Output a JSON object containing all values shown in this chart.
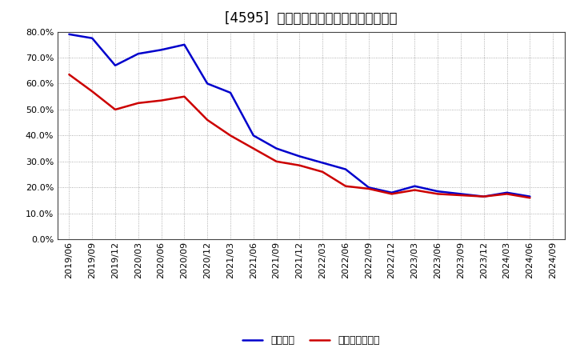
{
  "title": "[4595]  固定比率、固定長期適合率の推移",
  "x_labels": [
    "2019/06",
    "2019/09",
    "2019/12",
    "2020/03",
    "2020/06",
    "2020/09",
    "2020/12",
    "2021/03",
    "2021/06",
    "2021/09",
    "2021/12",
    "2022/03",
    "2022/06",
    "2022/09",
    "2022/12",
    "2023/03",
    "2023/06",
    "2023/09",
    "2023/12",
    "2024/03",
    "2024/06",
    "2024/09"
  ],
  "fixed_ratio": [
    79.0,
    77.5,
    67.0,
    71.5,
    73.0,
    75.0,
    60.0,
    56.5,
    40.0,
    35.0,
    32.0,
    29.5,
    27.0,
    20.0,
    18.0,
    20.5,
    18.5,
    17.5,
    16.5,
    18.0,
    16.5,
    null
  ],
  "fixed_long_ratio": [
    63.5,
    57.0,
    50.0,
    52.5,
    53.5,
    55.0,
    46.0,
    40.0,
    35.0,
    30.0,
    28.5,
    26.0,
    20.5,
    19.5,
    17.5,
    19.0,
    17.5,
    17.0,
    16.5,
    17.5,
    16.0,
    null
  ],
  "fixed_ratio_color": "#0000cc",
  "fixed_long_ratio_color": "#cc0000",
  "background_color": "#ffffff",
  "grid_color": "#999999",
  "ylim": [
    0,
    80
  ],
  "yticks": [
    0,
    10,
    20,
    30,
    40,
    50,
    60,
    70,
    80
  ],
  "legend_fixed": "固定比率",
  "legend_fixed_long": "固定長期適合率",
  "title_fontsize": 12,
  "tick_fontsize": 8,
  "legend_fontsize": 9
}
